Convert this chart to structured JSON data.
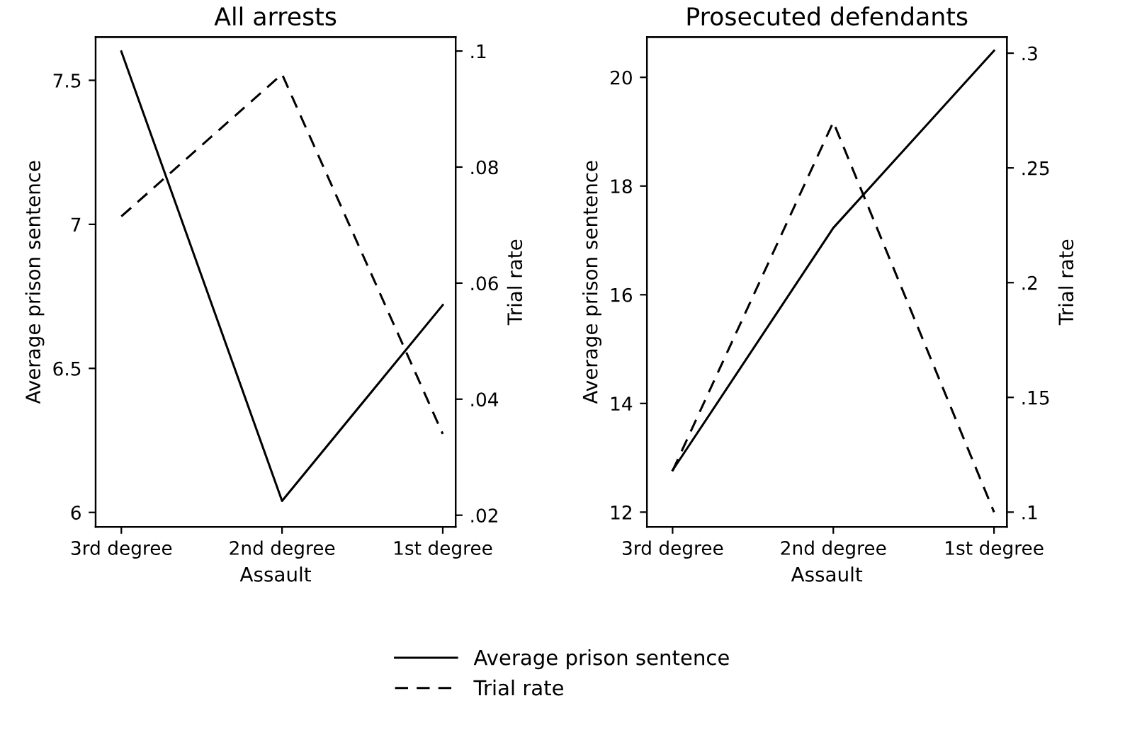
{
  "chart_data": [
    {
      "type": "line",
      "title": "All arrests",
      "xlabel": "Assault",
      "ylabel": "Average prison sentence",
      "y2label": "Trial rate",
      "categories": [
        "3rd degree",
        "2nd degree",
        "1st degree"
      ],
      "series": [
        {
          "name": "Average prison sentence",
          "color": "#000000",
          "line_style": "solid",
          "values": [
            7.6,
            6.04,
            6.72
          ]
        },
        {
          "name": "Trial rate",
          "color": "#000000",
          "line_style": "dashed",
          "axis": "y2",
          "values": [
            0.0715,
            0.096,
            0.034
          ]
        }
      ],
      "ylim": [
        5.95,
        7.65
      ],
      "yticks": [
        6,
        6.5,
        7,
        7.5
      ],
      "y2lim": [
        0.018,
        0.1024
      ],
      "y2ticks": [
        {
          "value": 0.02,
          "label": ".02"
        },
        {
          "value": 0.04,
          "label": ".04"
        },
        {
          "value": 0.06,
          "label": ".06"
        },
        {
          "value": 0.08,
          "label": ".08"
        },
        {
          "value": 0.1,
          "label": ".1"
        }
      ],
      "grid": false,
      "legend": "bottom"
    },
    {
      "type": "line",
      "title": "Prosecuted defendants",
      "xlabel": "Assault",
      "ylabel": "Average prison sentence",
      "y2label": "Trial rate",
      "categories": [
        "3rd degree",
        "2nd degree",
        "1st degree"
      ],
      "series": [
        {
          "color": "#000000",
          "line_style": "solid",
          "values": [
            12.77,
            17.23,
            20.49
          ]
        },
        {
          "color": "#000000",
          "line_style": "dashed",
          "axis": "y2",
          "values": [
            0.118,
            0.27,
            0.1
          ]
        }
      ],
      "ylim": [
        11.73,
        20.74
      ],
      "yticks": [
        12,
        14,
        16,
        18,
        20
      ],
      "y2lim": [
        0.0936,
        0.307
      ],
      "y2ticks": [
        {
          "value": 0.1,
          "label": ".1"
        },
        {
          "value": 0.15,
          "label": ".15"
        },
        {
          "value": 0.2,
          "label": ".2"
        },
        {
          "value": 0.25,
          "label": ".25"
        },
        {
          "value": 0.3,
          "label": ".3"
        }
      ],
      "grid": false
    }
  ]
}
